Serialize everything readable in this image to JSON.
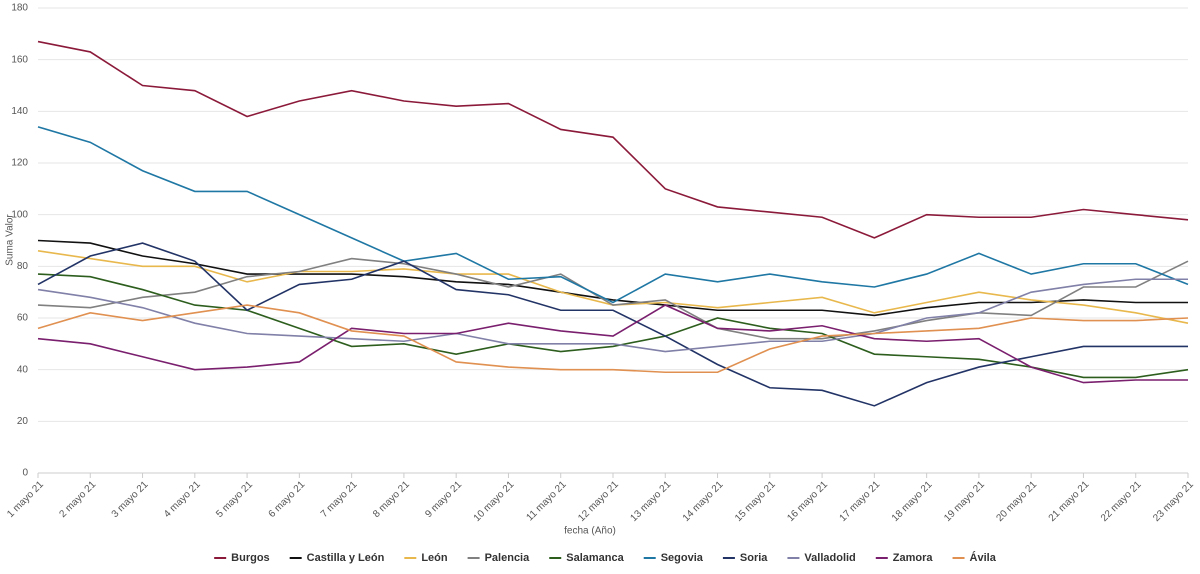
{
  "chart_data": {
    "type": "line",
    "x_label": "fecha (Año)",
    "y_label": "Suma Valor",
    "categories": [
      "1 mayo 21",
      "2 mayo 21",
      "3 mayo 21",
      "4 mayo 21",
      "5 mayo 21",
      "6 mayo 21",
      "7 mayo 21",
      "8 mayo 21",
      "9 mayo 21",
      "10 mayo 21",
      "11 mayo 21",
      "12 mayo 21",
      "13 mayo 21",
      "14 mayo 21",
      "15 mayo 21",
      "16 mayo 21",
      "17 mayo 21",
      "18 mayo 21",
      "19 mayo 21",
      "20 mayo 21",
      "21 mayo 21",
      "22 mayo 21",
      "23 mayo 21"
    ],
    "ylim": [
      0,
      180
    ],
    "yticks": [
      0,
      20,
      40,
      60,
      80,
      100,
      120,
      140,
      160,
      180
    ],
    "grid": true,
    "series": [
      {
        "name": "Burgos",
        "color": "#8b1a3a",
        "values": [
          167,
          163,
          150,
          148,
          138,
          144,
          148,
          144,
          142,
          143,
          133,
          130,
          110,
          103,
          101,
          99,
          91,
          100,
          99,
          99,
          102,
          100,
          98
        ]
      },
      {
        "name": "Castilla y León",
        "color": "#111111",
        "values": [
          90,
          89,
          84,
          81,
          77,
          77,
          77,
          76,
          74,
          73,
          70,
          67,
          65,
          63,
          63,
          63,
          61,
          64,
          66,
          66,
          67,
          66,
          66
        ]
      },
      {
        "name": "León",
        "color": "#e8b84d",
        "values": [
          86,
          83,
          80,
          80,
          74,
          78,
          78,
          79,
          77,
          77,
          70,
          65,
          66,
          64,
          66,
          68,
          62,
          66,
          70,
          67,
          65,
          62,
          58
        ]
      },
      {
        "name": "Palencia",
        "color": "#808080",
        "values": [
          65,
          64,
          68,
          70,
          76,
          78,
          83,
          81,
          77,
          72,
          77,
          65,
          67,
          56,
          52,
          52,
          55,
          59,
          62,
          61,
          72,
          72,
          82
        ]
      },
      {
        "name": "Salamanca",
        "color": "#2d5e1e",
        "values": [
          77,
          76,
          71,
          65,
          63,
          56,
          49,
          50,
          46,
          50,
          47,
          49,
          53,
          60,
          56,
          54,
          46,
          45,
          44,
          41,
          37,
          37,
          40
        ]
      },
      {
        "name": "Segovia",
        "color": "#1f77a4",
        "values": [
          134,
          128,
          117,
          109,
          109,
          100,
          91,
          82,
          85,
          75,
          76,
          66,
          77,
          74,
          77,
          74,
          72,
          77,
          85,
          77,
          81,
          81,
          73
        ]
      },
      {
        "name": "Soria",
        "color": "#223366",
        "values": [
          73,
          84,
          89,
          82,
          63,
          73,
          75,
          82,
          71,
          69,
          63,
          63,
          53,
          42,
          33,
          32,
          26,
          35,
          41,
          45,
          49,
          49,
          49
        ]
      },
      {
        "name": "Valladolid",
        "color": "#8080a8",
        "values": [
          71,
          68,
          64,
          58,
          54,
          53,
          52,
          51,
          54,
          50,
          50,
          50,
          47,
          49,
          51,
          51,
          54,
          60,
          62,
          70,
          73,
          75,
          75
        ]
      },
      {
        "name": "Zamora",
        "color": "#7a1f6e",
        "values": [
          52,
          50,
          45,
          40,
          41,
          43,
          56,
          54,
          54,
          58,
          55,
          53,
          65,
          56,
          55,
          57,
          52,
          51,
          52,
          41,
          35,
          36,
          36
        ]
      },
      {
        "name": "Ávila",
        "color": "#e09050",
        "values": [
          56,
          62,
          59,
          62,
          65,
          62,
          55,
          53,
          43,
          41,
          40,
          40,
          39,
          39,
          48,
          53,
          54,
          55,
          56,
          60,
          59,
          59,
          60
        ]
      }
    ],
    "legend": "bottom"
  }
}
